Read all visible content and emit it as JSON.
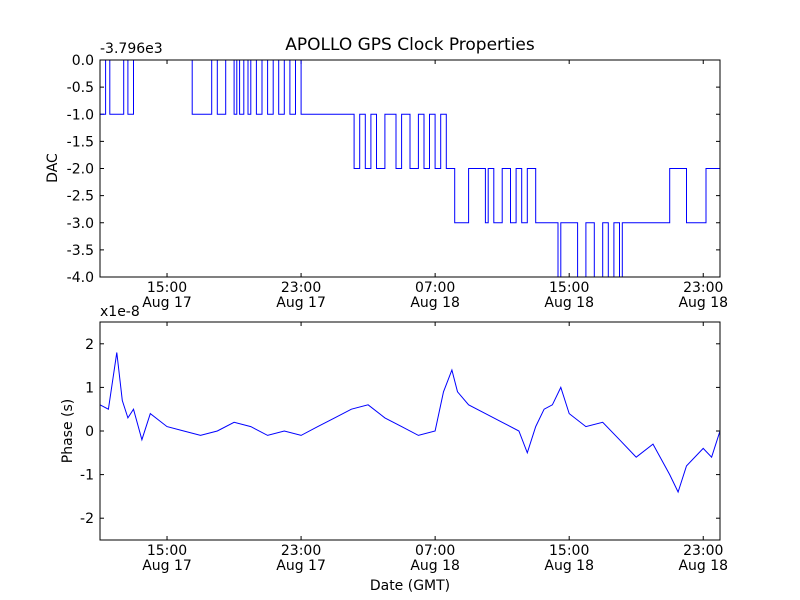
{
  "figure": {
    "title": "APOLLO GPS Clock Properties",
    "xlabel": "Date (GMT)"
  },
  "chart_data": [
    {
      "type": "line",
      "title": "APOLLO GPS Clock Properties",
      "ylabel": "DAC",
      "offset_label": "-3.796e3",
      "xlabel": "",
      "xlim": [
        "2013-08-17 11:00",
        "2013-08-19 00:00"
      ],
      "ylim": [
        -4.0,
        0.0
      ],
      "yticks": [
        "0.0",
        "-0.5",
        "-1.0",
        "-1.5",
        "-2.0",
        "-2.5",
        "-3.0",
        "-3.5",
        "-4.0"
      ],
      "xticks": [
        {
          "time": "15:00",
          "date": "Aug 17"
        },
        {
          "time": "23:00",
          "date": "Aug 17"
        },
        {
          "time": "07:00",
          "date": "Aug 18"
        },
        {
          "time": "15:00",
          "date": "Aug 18"
        },
        {
          "time": "23:00",
          "date": "Aug 18"
        }
      ],
      "color": "#0000ff",
      "series": [
        {
          "x": [
            "2013-08-17 11:00",
            "2013-08-17 11:20",
            "2013-08-17 11:35",
            "2013-08-17 12:00",
            "2013-08-17 12:25",
            "2013-08-17 12:40",
            "2013-08-17 13:00",
            "2013-08-17 13:30",
            "2013-08-17 14:30",
            "2013-08-17 15:00",
            "2013-08-17 16:00",
            "2013-08-17 16:30",
            "2013-08-17 17:40",
            "2013-08-17 18:00",
            "2013-08-17 18:30",
            "2013-08-17 19:00",
            "2013-08-17 19:10",
            "2013-08-17 19:20",
            "2013-08-17 19:35",
            "2013-08-17 19:50",
            "2013-08-17 20:00",
            "2013-08-17 20:20",
            "2013-08-17 20:40",
            "2013-08-17 21:00",
            "2013-08-17 21:20",
            "2013-08-17 21:40",
            "2013-08-17 22:00",
            "2013-08-17 22:20",
            "2013-08-17 22:40",
            "2013-08-17 23:00",
            "2013-08-17 23:20",
            "2013-08-18 02:00",
            "2013-08-18 02:10",
            "2013-08-18 02:30",
            "2013-08-18 02:50",
            "2013-08-18 03:10",
            "2013-08-18 03:30",
            "2013-08-18 04:00",
            "2013-08-18 04:20",
            "2013-08-18 04:40",
            "2013-08-18 05:00",
            "2013-08-18 05:30",
            "2013-08-18 06:00",
            "2013-08-18 06:20",
            "2013-08-18 06:40",
            "2013-08-18 07:00",
            "2013-08-18 07:20",
            "2013-08-18 07:40",
            "2013-08-18 08:00",
            "2013-08-18 08:10",
            "2013-08-18 09:00",
            "2013-08-18 10:00",
            "2013-08-18 10:10",
            "2013-08-18 10:30",
            "2013-08-18 11:00",
            "2013-08-18 11:30",
            "2013-08-18 11:50",
            "2013-08-18 12:10",
            "2013-08-18 12:30",
            "2013-08-18 13:00",
            "2013-08-18 14:00",
            "2013-08-18 14:20",
            "2013-08-18 14:30",
            "2013-08-18 15:00",
            "2013-08-18 15:30",
            "2013-08-18 16:00",
            "2013-08-18 16:30",
            "2013-08-18 17:00",
            "2013-08-18 17:20",
            "2013-08-18 17:40",
            "2013-08-18 18:00",
            "2013-08-18 18:10",
            "2013-08-18 20:00",
            "2013-08-18 21:00",
            "2013-08-18 22:00",
            "2013-08-18 23:00",
            "2013-08-18 23:10",
            "2013-08-19 00:00"
          ],
          "y": [
            -1.0,
            0.0,
            -1.0,
            -1.0,
            0.0,
            -1.0,
            0.0,
            0.0,
            0.0,
            0.0,
            0.0,
            -1.0,
            0.0,
            -1.0,
            0.0,
            -1.0,
            0.0,
            -1.0,
            0.0,
            -1.0,
            0.0,
            -1.0,
            0.0,
            -1.0,
            0.0,
            -1.0,
            0.0,
            -1.0,
            0.0,
            -1.0,
            -1.0,
            -1.0,
            -2.0,
            -1.0,
            -2.0,
            -1.0,
            -2.0,
            -1.0,
            -1.0,
            -2.0,
            -1.0,
            -2.0,
            -1.0,
            -2.0,
            -1.0,
            -2.0,
            -1.0,
            -2.0,
            -2.0,
            -3.0,
            -2.0,
            -3.0,
            -2.0,
            -3.0,
            -2.0,
            -3.0,
            -2.0,
            -3.0,
            -2.0,
            -3.0,
            -3.0,
            -4.0,
            -3.0,
            -3.0,
            -4.0,
            -3.0,
            -4.0,
            -3.0,
            -4.0,
            -3.0,
            -4.0,
            -3.0,
            -3.0,
            -2.0,
            -3.0,
            -3.0,
            -2.0,
            -3.0
          ]
        }
      ]
    },
    {
      "type": "line",
      "ylabel": "Phase (s)",
      "offset_label": "x1e-8",
      "xlabel": "Date (GMT)",
      "xlim": [
        "2013-08-17 11:00",
        "2013-08-19 00:00"
      ],
      "ylim": [
        -2.5,
        2.5
      ],
      "yticks": [
        "2",
        "1",
        "0",
        "-1",
        "-2"
      ],
      "xticks": [
        {
          "time": "15:00",
          "date": "Aug 17"
        },
        {
          "time": "23:00",
          "date": "Aug 17"
        },
        {
          "time": "07:00",
          "date": "Aug 18"
        },
        {
          "time": "15:00",
          "date": "Aug 18"
        },
        {
          "time": "23:00",
          "date": "Aug 18"
        }
      ],
      "color": "#0000ff",
      "series": [
        {
          "x": [
            "2013-08-17 11:00",
            "2013-08-17 11:30",
            "2013-08-17 12:00",
            "2013-08-17 12:20",
            "2013-08-17 12:40",
            "2013-08-17 13:00",
            "2013-08-17 13:30",
            "2013-08-17 14:00",
            "2013-08-17 15:00",
            "2013-08-17 16:00",
            "2013-08-17 17:00",
            "2013-08-17 18:00",
            "2013-08-17 19:00",
            "2013-08-17 20:00",
            "2013-08-17 21:00",
            "2013-08-17 22:00",
            "2013-08-17 23:00",
            "2013-08-18 00:00",
            "2013-08-18 01:00",
            "2013-08-18 02:00",
            "2013-08-18 03:00",
            "2013-08-18 04:00",
            "2013-08-18 05:00",
            "2013-08-18 06:00",
            "2013-08-18 07:00",
            "2013-08-18 07:30",
            "2013-08-18 08:00",
            "2013-08-18 08:20",
            "2013-08-18 09:00",
            "2013-08-18 10:00",
            "2013-08-18 11:00",
            "2013-08-18 12:00",
            "2013-08-18 12:30",
            "2013-08-18 13:00",
            "2013-08-18 13:30",
            "2013-08-18 14:00",
            "2013-08-18 14:30",
            "2013-08-18 15:00",
            "2013-08-18 16:00",
            "2013-08-18 17:00",
            "2013-08-18 18:00",
            "2013-08-18 19:00",
            "2013-08-18 20:00",
            "2013-08-18 21:00",
            "2013-08-18 21:30",
            "2013-08-18 22:00",
            "2013-08-18 23:00",
            "2013-08-18 23:30",
            "2013-08-19 00:00"
          ],
          "y": [
            0.6,
            0.5,
            1.8,
            0.7,
            0.3,
            0.5,
            -0.2,
            0.4,
            0.1,
            0.0,
            -0.1,
            0.0,
            0.2,
            0.1,
            -0.1,
            0.0,
            -0.1,
            0.1,
            0.3,
            0.5,
            0.6,
            0.3,
            0.1,
            -0.1,
            0.0,
            0.9,
            1.4,
            0.9,
            0.6,
            0.4,
            0.2,
            0.0,
            -0.5,
            0.1,
            0.5,
            0.6,
            1.0,
            0.4,
            0.1,
            0.2,
            -0.2,
            -0.6,
            -0.3,
            -1.0,
            -1.4,
            -0.8,
            -0.4,
            -0.6,
            0.0
          ]
        }
      ]
    }
  ]
}
